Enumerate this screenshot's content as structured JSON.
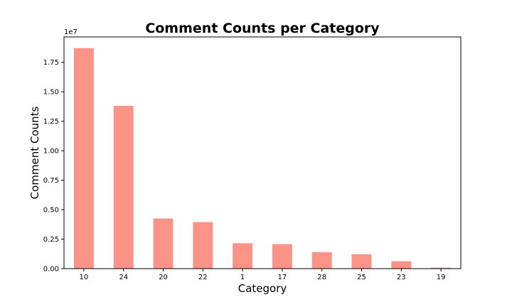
{
  "chart_data": {
    "type": "bar",
    "title": "Comment Counts per Category",
    "xlabel": "Category",
    "ylabel": "Comment Counts",
    "y_offset_label": "1e7",
    "categories": [
      "10",
      "24",
      "20",
      "22",
      "1",
      "17",
      "28",
      "25",
      "23",
      "19"
    ],
    "values": [
      18700000,
      13800000,
      4250000,
      3950000,
      2150000,
      2080000,
      1400000,
      1220000,
      630000,
      80000
    ],
    "ylim": [
      0,
      19650000
    ],
    "y_ticks": [
      0,
      2500000,
      5000000,
      7500000,
      10000000,
      12500000,
      15000000,
      17500000
    ],
    "y_tick_labels": [
      "0.00",
      "0.25",
      "0.50",
      "0.75",
      "1.00",
      "1.25",
      "1.50",
      "1.75"
    ],
    "bar_color": "#fa8072",
    "grid": false,
    "legend": false
  }
}
